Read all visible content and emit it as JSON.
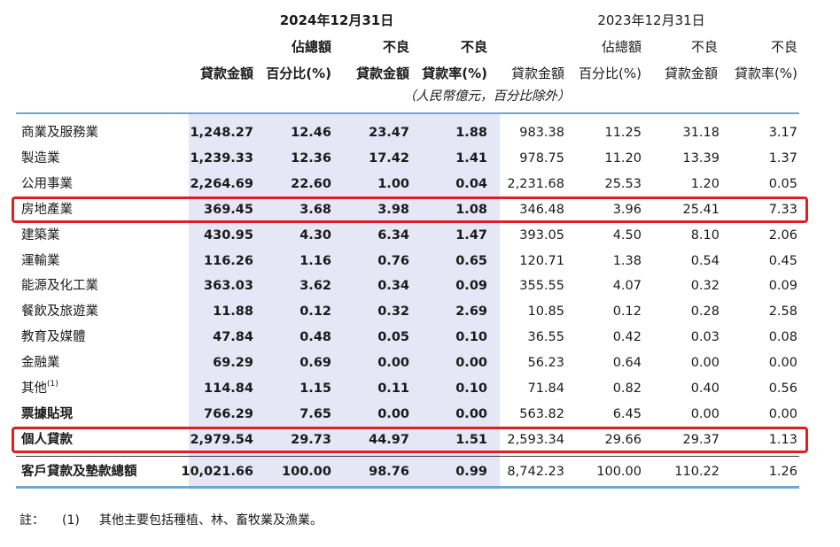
{
  "header": {
    "date_2024": "2024年12月31日",
    "date_2023": "2023年12月31日",
    "col_loan_amount": "貸款金額",
    "col_pct_total_1": "佔總額",
    "col_pct_total_2": "百分比(%)",
    "col_npl_1": "不良",
    "col_npl_2": "貸款金額",
    "col_npl_ratio_1": "不良",
    "col_npl_ratio_2": "貸款率(%)",
    "unit_note": "（人民幣億元，百分比除外）"
  },
  "rows": [
    {
      "label": "商業及服務業",
      "v": [
        "1,248.27",
        "12.46",
        "23.47",
        "1.88",
        "983.38",
        "11.25",
        "31.18",
        "3.17"
      ]
    },
    {
      "label": "製造業",
      "v": [
        "1,239.33",
        "12.36",
        "17.42",
        "1.41",
        "978.75",
        "11.20",
        "13.39",
        "1.37"
      ]
    },
    {
      "label": "公用事業",
      "v": [
        "2,264.69",
        "22.60",
        "1.00",
        "0.04",
        "2,231.68",
        "25.53",
        "1.20",
        "0.05"
      ]
    },
    {
      "label": "房地產業",
      "v": [
        "369.45",
        "3.68",
        "3.98",
        "1.08",
        "346.48",
        "3.96",
        "25.41",
        "7.33"
      ]
    },
    {
      "label": "建築業",
      "v": [
        "430.95",
        "4.30",
        "6.34",
        "1.47",
        "393.05",
        "4.50",
        "8.10",
        "2.06"
      ]
    },
    {
      "label": "運輸業",
      "v": [
        "116.26",
        "1.16",
        "0.76",
        "0.65",
        "120.71",
        "1.38",
        "0.54",
        "0.45"
      ]
    },
    {
      "label": "能源及化工業",
      "v": [
        "363.03",
        "3.62",
        "0.34",
        "0.09",
        "355.55",
        "4.07",
        "0.32",
        "0.09"
      ]
    },
    {
      "label": "餐飲及旅遊業",
      "v": [
        "11.88",
        "0.12",
        "0.32",
        "2.69",
        "10.85",
        "0.12",
        "0.28",
        "2.58"
      ]
    },
    {
      "label": "教育及媒體",
      "v": [
        "47.84",
        "0.48",
        "0.05",
        "0.10",
        "36.55",
        "0.42",
        "0.03",
        "0.08"
      ]
    },
    {
      "label": "金融業",
      "v": [
        "69.29",
        "0.69",
        "0.00",
        "0.00",
        "56.23",
        "0.64",
        "0.00",
        "0.00"
      ]
    },
    {
      "label": "其他",
      "v": [
        "114.84",
        "1.15",
        "0.11",
        "0.10",
        "71.84",
        "0.82",
        "0.40",
        "0.56"
      ]
    },
    {
      "label": "票據貼現",
      "v": [
        "766.29",
        "7.65",
        "0.00",
        "0.00",
        "563.82",
        "6.45",
        "0.00",
        "0.00"
      ]
    },
    {
      "label": "個人貸款",
      "v": [
        "2,979.54",
        "29.73",
        "44.97",
        "1.51",
        "2,593.34",
        "29.66",
        "29.37",
        "1.13"
      ]
    }
  ],
  "other_footnote_marker": "(1)",
  "total": {
    "label": "客戶貸款及墊款總額",
    "v": [
      "10,021.66",
      "100.00",
      "98.76",
      "0.99",
      "8,742.23",
      "100.00",
      "110.22",
      "1.26"
    ]
  },
  "footnote": {
    "prefix": "註：",
    "marker": "(1)",
    "text": "其他主要包括種植、林、畜牧業及漁業。"
  },
  "highlight_color": "#e02020",
  "shade_color": "#e6e7f6",
  "rule_color": "#6aa7d4"
}
